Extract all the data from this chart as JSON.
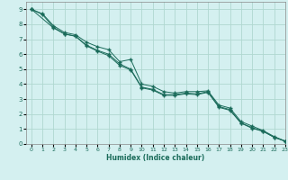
{
  "xlabel": "Humidex (Indice chaleur)",
  "bg_color": "#d4f0f0",
  "grid_color": "#b0d8d0",
  "line_color": "#1a6b5a",
  "xlim": [
    -0.5,
    23
  ],
  "ylim": [
    0,
    9.5
  ],
  "xticks": [
    0,
    1,
    2,
    3,
    4,
    5,
    6,
    7,
    8,
    9,
    10,
    11,
    12,
    13,
    14,
    15,
    16,
    17,
    18,
    19,
    20,
    21,
    22,
    23
  ],
  "yticks": [
    0,
    1,
    2,
    3,
    4,
    5,
    6,
    7,
    8,
    9
  ],
  "series1_x": [
    0,
    1,
    2,
    3,
    4,
    5,
    6,
    7,
    8,
    9,
    10,
    11,
    12,
    13,
    14,
    15,
    16,
    17,
    18,
    19,
    20,
    21,
    22,
    23
  ],
  "series1_y": [
    9.0,
    8.7,
    7.9,
    7.45,
    7.3,
    6.8,
    6.5,
    6.3,
    5.5,
    5.65,
    4.0,
    3.85,
    3.5,
    3.4,
    3.5,
    3.5,
    3.55,
    2.6,
    2.4,
    1.5,
    1.2,
    0.9,
    0.5,
    0.2
  ],
  "series2_x": [
    0,
    1,
    2,
    3,
    4,
    5,
    6,
    7,
    8,
    9,
    10,
    11,
    12,
    13,
    14,
    15,
    16,
    17,
    18,
    19,
    20,
    21,
    22,
    23
  ],
  "series2_y": [
    9.0,
    8.65,
    7.8,
    7.35,
    7.2,
    6.6,
    6.25,
    6.0,
    5.35,
    5.0,
    3.8,
    3.65,
    3.3,
    3.3,
    3.4,
    3.35,
    3.5,
    2.5,
    2.3,
    1.4,
    1.1,
    0.85,
    0.45,
    0.2
  ],
  "series3_x": [
    0,
    2,
    3,
    4,
    5,
    6,
    7,
    8,
    9,
    10,
    11,
    12,
    13,
    14,
    15,
    16,
    17,
    18,
    19,
    20,
    21,
    22,
    23
  ],
  "series3_y": [
    9.0,
    7.75,
    7.35,
    7.2,
    6.55,
    6.2,
    5.9,
    5.25,
    4.95,
    3.75,
    3.6,
    3.25,
    3.25,
    3.35,
    3.3,
    3.45,
    2.45,
    2.25,
    1.4,
    1.05,
    0.85,
    0.45,
    0.18
  ]
}
